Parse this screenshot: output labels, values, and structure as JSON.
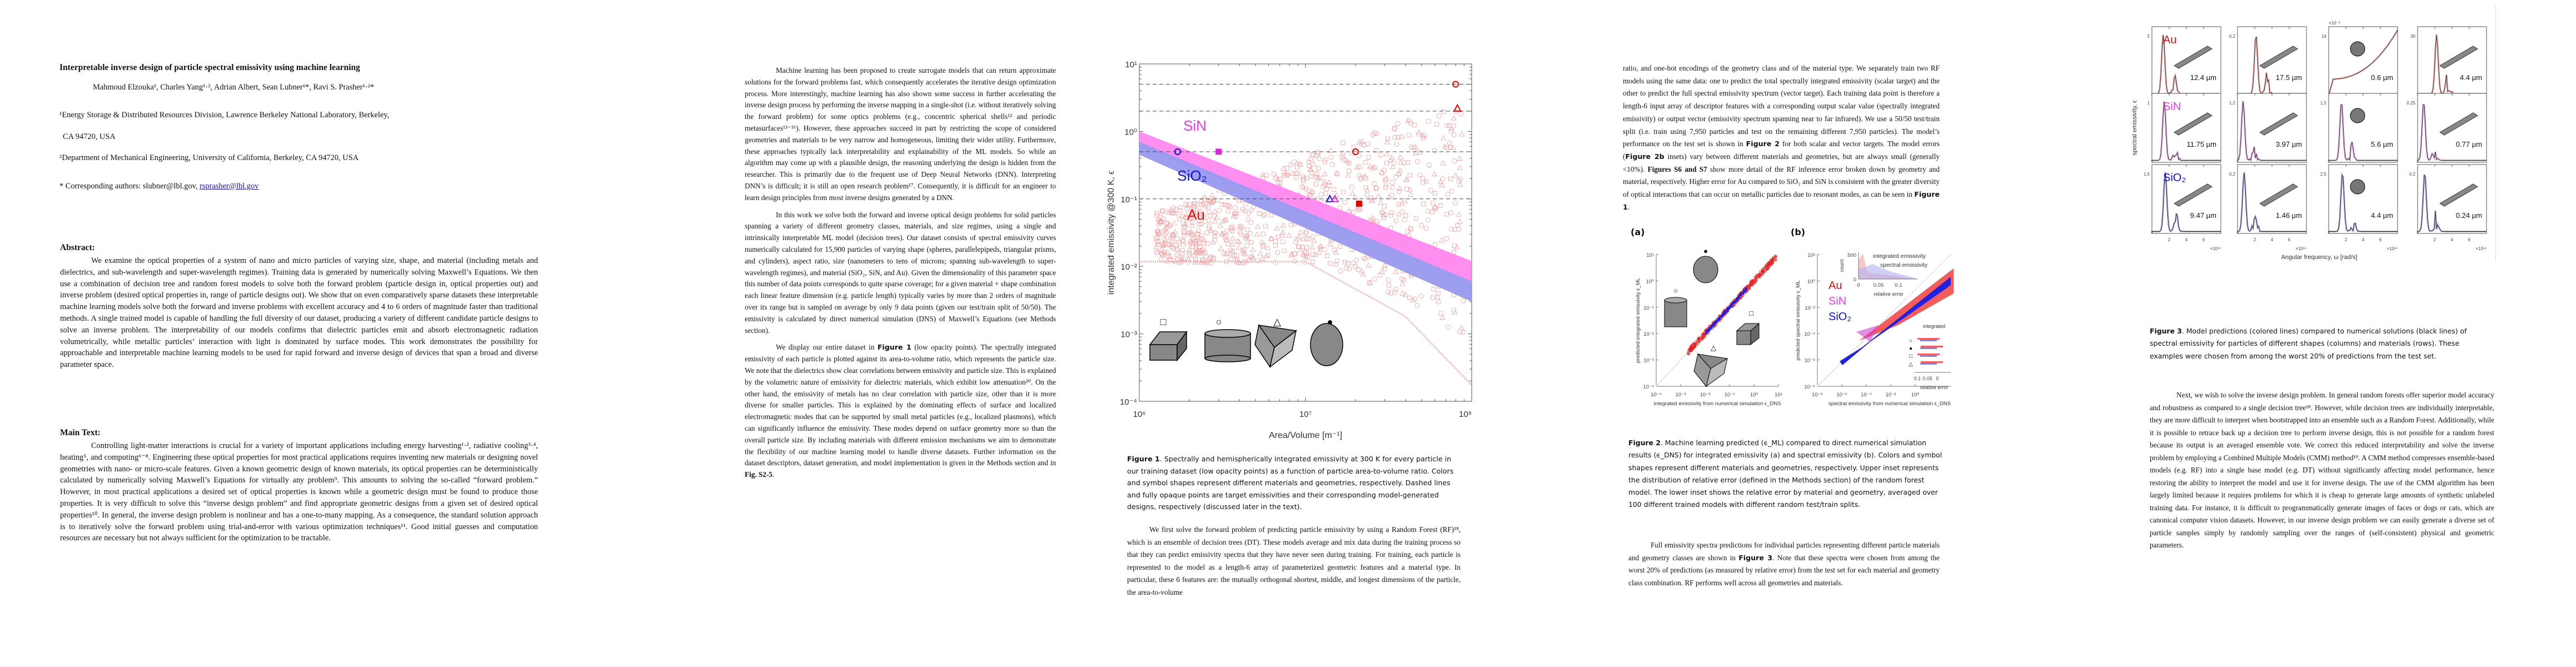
{
  "page1": {
    "title": "Interpretable inverse design of particle spectral emissivity using machine learning",
    "authors": "Mahmoud Elzouka¹, Charles Yang¹·²,  Adrian Albert, Sean Lubner¹*, Ravi S. Prasher¹·²*",
    "affil1_line1": "¹Energy Storage & Distributed Resources Division, Lawrence Berkeley National Laboratory, Berkeley,",
    "affil1_line2": "CA 94720, USA",
    "affil2": "²Department of Mechanical Engineering, University of California, Berkeley, CA 94720, USA",
    "corresponding_prefix": "* Corresponding authors: slubner@lbl.gov, ",
    "corresponding_link": "rsprasher@lbl.gov",
    "abstract_heading": "Abstract:",
    "abstract": "We examine the optical properties of a system of nano and micro particles of varying size, shape, and material (including metals and dielectrics, and sub-wavelength and super-wavelength regimes). Training data is generated by numerically solving Maxwell’s Equations. We then use a combination of decision tree and random forest models to solve both the forward problem (particle design in, optical properties out) and inverse problem (desired optical properties in, range of particle designs out). We show that on even comparatively sparse datasets these interpretable machine learning models solve both the forward and inverse problems with excellent accuracy and 4 to 6 orders of magnitude faster than traditional methods. A single trained model is capable of handling the full diversity of our dataset, producing a variety of different candidate particle designs to solve an inverse problem. The interpretability of our models confirms that dielectric particles emit and absorb electromagnetic radiation volumetrically, while metallic particles’ interaction with light is dominated by surface modes. This work demonstrates the possibility for approachable and interpretable machine learning models to be used for rapid forward and inverse design of devices that span a broad and diverse parameter space.",
    "main_heading": "Main Text:",
    "main_text": "Controlling light-matter interactions is crucial for a variety of important applications including energy harvesting¹·², radiative cooling³·⁴, heating⁵, and computing⁶⁻⁸. Engineering these optical properties for most practical applications requires inventing new materials or designing novel geometries with nano- or micro-scale features. Given a known geometric design of known materials, its optical properties can be deterministically calculated by numerically solving Maxwell’s Equations for virtually any problem⁹. This amounts to solving the so-called “forward problem.” However, in most practical applications a desired set of optical properties is known while a geometric design must be found to produce those properties. It is very difficult to solve this “inverse design problem” and find appropriate geometric designs from a given set of desired optical properties¹⁰. In general, the inverse design problem is nonlinear and has a one-to-many mapping. As a consequence, the standard solution approach is to iteratively solve the forward problem using trial-and-error with various optimization techniques¹¹. Good initial guesses and computation resources are necessary but not always sufficient for the optimization to be tractable."
  },
  "page2": {
    "para1": "Machine learning has been proposed to create surrogate models that can return approximate solutions for the forward problems fast, which consequently accelerates the iterative design optimization process. More interestingly, machine learning has also shown some success in further accelerating the inverse design process by performing the inverse mapping in a single-shot (i.e. without iteratively solving the forward problem) for some optics problems (e.g., concentric spherical shells¹² and periodic metasurfaces¹³⁻¹⁶). However, these approaches succeed in part by restricting the scope of considered geometries and materials to be very narrow and homogeneous, limiting their wider utility. Furthermore, these approaches typically lack interpretability and explainability of the ML models. So while an algorithm may come up with a plausible design, the reasoning underlying the design is hidden from the researcher. This is primarily due to the frequent use of Deep Neural Networks (DNN). Interpreting DNN’s is difficult; it is still an open research problem¹⁷. Consequently, it is difficult for an engineer to learn design principles from most inverse designs generated by a DNN.",
    "para2": "In this work we solve both the forward and inverse optical design problems for solid particles spanning a variety of different geometry classes, materials, and size regimes, using a single and intrinsically interpretable ML model (decision trees).  Our dataset consists of spectral emissivity curves numerically calculated for 15,900 particles of varying shape (spheres, parallelepipeds, triangular prisms, and cylinders), aspect ratio, size (nanometers to tens of microns; spanning sub-wavelength to super-wavelength regimes), and material (SiO₂, SiN, and Au). Given the dimensionality of this parameter space this number of data points corresponds to quite sparse coverage; for a given material + shape combination each linear feature dimension (e.g. particle length) typically varies by more than 2 orders of magnitude over its range but is sampled on average by only 9 data points (given our test/train split of 50/50). The emissivity is calculated by direct numerical simulation (DNS) of Maxwell’s Equations (see Methods section).",
    "para3_pre": "We display our entire dataset in ",
    "para3_ref": "Figure 1",
    "para3_post": " (low opacity points). The spectrally integrated emissivity of each particle is plotted against its area-to-volume ratio, which represents the particle size. We note that the dielectrics show clear correlations between emissivity and particle size. This is explained by the volumetric nature of emissivity for dielectric materials, which exhibit low attenuation²⁰. On the other hand, the emissivity of metals has no clear correlation with particle size, other than it is more diverse for smaller particles. This is explained by the dominating effects of surface and localized electromagnetic modes that can be supported by small metal particles (e.g., localized plasmons), which can significantly influence the emissivity. These modes depend on surface geometry more so than the overall particle size.  By including materials with different emission mechanisms we aim to demonstrate the flexibility of our machine learning model to handle diverse datasets. Further information on the dataset descriptors, dataset generation, and model implementation is given in the Methods section and in ",
    "para3_fig": "Fig. S2-5",
    "para3_end": "."
  },
  "figure1": {
    "caption_label": "Figure 1",
    "caption": ". Spectrally and hemispherically integrated emissivity at 300 K for every particle in our training dataset (low opacity points) as a function of particle area-to-volume ratio. Colors and symbol shapes represent different materials and geometries, respectively.  Dashed lines and fully opaque points are target emissivities and their corresponding model-generated designs, respectively (discussed later in the text).",
    "followup": "We first solve the forward problem of predicting particle emissivity by using a Random Forest (RF)¹⁸, which is an ensemble of decision trees (DT). These models average and mix data during the training process so that they can predict emissivity spectra that they have never seen during training. For training, each particle is represented to the model as a length-6 array of parameterized geometric features and a material type. In particular, these 6 features are: the mutually orthogonal shortest, middle, and longest dimensions of the particle, the area-to-volume"
  },
  "page3": {
    "para1_a": "ratio, and one-hot encodings of the geometry class and of the material type. We separately train two RF models using the same data: one to predict the total spectrally integrated emissivity (scalar target) and the other to predict the full spectral emissivity spectrum (vector target). Each training data point is therefore a length-6 input array of descriptor features with a corresponding output scalar value (spectrally integrated emissivity) or output vector (emissivity spectrum spanning near to far infrared). We use a 50/50 test/train split (i.e. train using 7,950 particles and test on the remaining different 7,950 particles). The model’s performance on the test set is shown in ",
    "para1_ref1": "Figure 2",
    "para1_b": " for both scalar and vector targets. The model errors (",
    "para1_ref2": "Figure 2b",
    "para1_c": " insets) vary between different materials and geometries, but are always small (generally <10%). ",
    "para1_ref3": "Figures S6 and S7",
    "para1_d": " show more detail of the RF inference error broken down by geometry and material, respectively. Higher error for Au compared to SiO₂ and SiN is consistent with the greater diversity of optical interactions that can occur on metallic particles due to resonant modes, as can be seen in ",
    "para1_ref4": "Figure 1",
    "para1_e": ".",
    "para2_a": "Full emissivity spectra predictions for individual particles representing different particle materials and geometry classes are shown in ",
    "para2_ref": "Figure 3",
    "para2_b": ".  Note that these spectra were chosen from among the worst 20% of predictions (as measured by relative error) from the test set for each material and geometry class combination. RF performs well across all geometries and materials."
  },
  "figure2": {
    "panel_a": "(a)",
    "panel_b": "(b)",
    "caption_label": "Figure 2",
    "caption": ". Machine learning predicted (ϵ_ML) compared to direct numerical simulation results (ϵ_DNS) for integrated emissivity (a) and spectral emissivity (b). Colors and symbol shapes represent different materials and geometries, respectively. Upper inset represents the distribution of relative error (defined in the Methods section) of the random forest model. The lower inset shows the relative error by material and geometry, averaged over 100 different trained models with different random test/train splits."
  },
  "page4": {
    "para1": "Next, we wish to solve the inverse design problem. In general random forests offer superior model accuracy and robustness as compared to a single decision tree¹⁸. However, while decision trees are individually interpretable, they are more difficult to interpret when bootstrapped into an ensemble such as a Random Forest. Additionally, while it is possible to retrace back up a decision tree to perform inverse design, this is not possible for a random forest because its output is an averaged ensemble vote. We correct this reduced interpretability and solve the inverse problem by employing a Combined Multiple Models (CMM) method¹⁹. A CMM method compresses ensemble-based models (e.g. RF) into a single base model (e.g. DT) without significantly affecting model performance, hence restoring the ability to interpret the model and use it for inverse design. The use of the CMM algorithm has been largely limited because it requires problems for which it is cheap to generate large amounts of synthetic unlabeled training data. For instance, it is difficult to programmatically generate images of faces or dogs or cats, which are canonical computer vision datasets. However, in our inverse design problem we can easily generate a diverse set of particle samples simply by randomly sampling over the ranges of (self-consistent) physical and geometric parameters."
  },
  "figure3": {
    "caption_label": "Figure 3",
    "caption": ". Model predictions (colored lines) compared to numerical solutions (black lines) of spectral emissivity for particles of different shapes (columns) and materials (rows).  These examples were chosen from among the worst 20% of predictions from the test set."
  },
  "chart_data": [
    {
      "type": "scatter",
      "id": "figure1",
      "title": "",
      "xlabel": "Area/Volume [m⁻¹]",
      "ylabel": "integrated emissivity @300 K, ϵ",
      "xscale": "log",
      "yscale": "log",
      "xlim": [
        1000000,
        100000000
      ],
      "ylim": [
        0.0001,
        10
      ],
      "x_tick_labels": [
        "10⁶",
        "10⁷",
        "10⁸"
      ],
      "y_tick_labels": [
        "10⁻⁴",
        "10⁻³",
        "10⁻²",
        "10⁻¹",
        "10⁰",
        "10¹"
      ],
      "target_lines": [
        0.1,
        0.5,
        2,
        5
      ],
      "series_labels": [
        {
          "name": "SiN",
          "color": "#e040e0"
        },
        {
          "name": "SiO₂",
          "color": "#1010d0"
        },
        {
          "name": "Au",
          "color": "#e01010"
        }
      ],
      "colors": {
        "SiN": "#ff88f0",
        "SiO2": "#9999f0",
        "Au": "#f4a0a0"
      },
      "bands": [
        {
          "name": "SiN",
          "x": [
            1000000,
            100000000
          ],
          "y_upper": [
            1.0,
            0.012
          ],
          "y_lower": [
            0.6,
            0.006
          ]
        },
        {
          "name": "SiO2",
          "x": [
            1000000,
            100000000
          ],
          "y_upper": [
            0.7,
            0.006
          ],
          "y_lower": [
            0.45,
            0.003
          ]
        }
      ],
      "highlighted_points": [
        {
          "material": "SiO2",
          "shape": "circle",
          "x": 1700000,
          "y": 0.5
        },
        {
          "material": "SiN",
          "shape": "square",
          "x": 3000000,
          "y": 0.5
        },
        {
          "material": "SiO2",
          "shape": "triangle",
          "x": 14000000,
          "y": 0.1
        },
        {
          "material": "SiN",
          "shape": "triangle",
          "x": 15000000,
          "y": 0.1
        },
        {
          "material": "Au",
          "shape": "square",
          "x": 21000000,
          "y": 0.085
        },
        {
          "material": "Au",
          "shape": "circle",
          "x": 20000000,
          "y": 0.5
        },
        {
          "material": "Au",
          "shape": "circle",
          "x": 80000000,
          "y": 5
        },
        {
          "material": "Au",
          "shape": "triangle",
          "x": 82000000,
          "y": 2.2
        }
      ],
      "shape_legend": [
        "□",
        "○",
        "△",
        "●"
      ]
    },
    {
      "type": "scatter",
      "id": "figure2a",
      "xlabel": "integrated emissivity from numerical simulation ϵ_DNS",
      "ylabel": "predicted integrated emissivity ϵ_ML",
      "xlim": [
        0.0001,
        10
      ],
      "ylim": [
        0.0001,
        10
      ],
      "x_tick_labels": [
        "10⁻⁴",
        "10⁻³",
        "10⁻²",
        "10⁻¹",
        "10⁰",
        "10¹"
      ],
      "y_tick_labels": [
        "10⁻⁴",
        "10⁻³",
        "10⁻²",
        "10⁻¹",
        "10⁰",
        "10¹"
      ],
      "diagonal_range": [
        0.002,
        8
      ],
      "shape_legend": [
        "●",
        "○",
        "□",
        "△"
      ]
    },
    {
      "type": "scatter",
      "id": "figure2b",
      "xlabel": "spectral emissivity from numerical simulation ϵ_DNS",
      "ylabel": "predicted spectral emissivity ϵ_ML",
      "xlim": [
        1e-08,
        100
      ],
      "ylim": [
        1e-08,
        100
      ],
      "x_tick_labels": [
        "10⁻⁸",
        "10⁻⁶",
        "10⁻⁴",
        "10⁻²",
        "10⁰",
        "10²"
      ],
      "y_tick_labels": [
        "10⁻⁸",
        "10⁻⁶",
        "10⁻⁴",
        "10⁻²",
        "10⁰",
        "10²"
      ],
      "legend": [
        {
          "name": "Au",
          "color": "#e01010"
        },
        {
          "name": "SiN",
          "color": "#e040e0"
        },
        {
          "name": "SiO₂",
          "color": "#1010d0"
        }
      ],
      "upper_inset": {
        "ylabel": "count",
        "xlabel": "relative error",
        "y_ticks": [
          "0",
          "500"
        ],
        "x_ticks": [
          "0",
          "0.05",
          "0.1"
        ],
        "annotations": [
          "integrated emissivity",
          "spectral emissivity"
        ]
      },
      "lower_inset": {
        "xlabel": "relative error",
        "x_ticks": [
          "0.1",
          "0.05",
          "0",
          "0.05"
        ],
        "annotations": [
          "integrated",
          "spectral"
        ],
        "rows": [
          "○",
          "●",
          "□",
          "△"
        ]
      }
    },
    {
      "type": "line",
      "id": "figure3",
      "xlabel": "Angular frequency, ω [rad/s]",
      "ylabel": "spectral emissivity, ϵ",
      "x_multiplier": "×10¹⁴",
      "x_ticks": [
        "2",
        "4",
        "6"
      ],
      "rows": [
        "Au",
        "SiN",
        "SiO₂"
      ],
      "row_colors": [
        "#d04040",
        "#b040b0",
        "#4040b0"
      ],
      "panels": [
        {
          "row": "Au",
          "col": 1,
          "ytick": "2",
          "size": "12.4 µm"
        },
        {
          "row": "Au",
          "col": 2,
          "ytick": "0.2",
          "size": "17.5 µm"
        },
        {
          "row": "Au",
          "col": 3,
          "ytick": "14",
          "ymult": "×10⁻³",
          "size": "0.6 µm"
        },
        {
          "row": "Au",
          "col": 4,
          "ytick": "30",
          "size": "4.4 µm"
        },
        {
          "row": "SiN",
          "col": 1,
          "ytick": "1",
          "size": "11.75 µm"
        },
        {
          "row": "SiN",
          "col": 2,
          "ytick": "1.2",
          "size": "3.97 µm"
        },
        {
          "row": "SiN",
          "col": 3,
          "ytick": "1.5",
          "size": "5.6 µm"
        },
        {
          "row": "SiN",
          "col": 4,
          "ytick": "0.25",
          "size": "0.77 µm"
        },
        {
          "row": "SiO₂",
          "col": 1,
          "ytick": "1.5",
          "size": "9.47 µm"
        },
        {
          "row": "SiO₂",
          "col": 2,
          "ytick": "0.2",
          "size": "1.46 µm"
        },
        {
          "row": "SiO₂",
          "col": 3,
          "ytick": "2.5",
          "size": "4.4 µm"
        },
        {
          "row": "SiO₂",
          "col": 4,
          "ytick": "0.2",
          "size": "0.24 µm"
        }
      ]
    }
  ]
}
